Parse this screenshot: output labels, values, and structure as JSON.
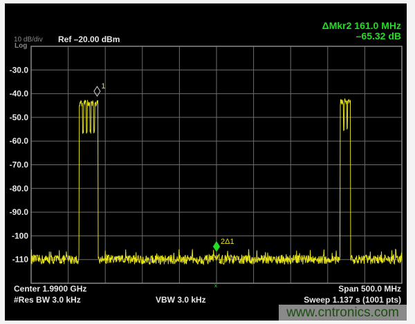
{
  "header": {
    "scale": "10 dB/div",
    "scale_type": "Log",
    "ref_level": "Ref –20.00 dBm",
    "marker_readout_line1": "ΔMkr2 161.0 MHz",
    "marker_readout_line2": "–65.32 dB"
  },
  "footer": {
    "center": "Center 1.9900 GHz",
    "span": "Span 500.0 MHz",
    "res_bw": "#Res BW 3.0 kHz",
    "vbw": "VBW 3.0 kHz",
    "sweep": "Sweep  1.137 s (1001 pts)"
  },
  "watermark": "www.cntronics.com",
  "colors": {
    "trace": "#e6e21a",
    "marker_delta": "#22dd22",
    "marker_ref": "#cfcfcf",
    "grid": "#6e6e6e",
    "background": "#000000",
    "readout": "#22dd22"
  },
  "chart_data": {
    "type": "line",
    "x_unit": "GHz",
    "xlim": [
      1.74,
      2.24
    ],
    "ylim": [
      -120,
      -20
    ],
    "y_ticks": [
      "-30.0",
      "-40.0",
      "-50.0",
      "-60.0",
      "-70.0",
      "-80.0",
      "-90.0",
      "-100",
      "-110"
    ],
    "y_tick_values": [
      -30,
      -40,
      -50,
      -60,
      -70,
      -80,
      -90,
      -100,
      -110
    ],
    "grid": true,
    "noise_floor_db": -110,
    "bands": [
      {
        "start_ghz": 1.805,
        "end_ghz": 1.83,
        "top_db": -44,
        "dip_db": -57,
        "dips": 4
      },
      {
        "start_ghz": 2.157,
        "end_ghz": 2.171,
        "top_db": -43.5,
        "dip_db": -56,
        "dips": 2
      }
    ],
    "markers": [
      {
        "label": "1",
        "freq_ghz": 1.829,
        "level_db": -39,
        "type": "reference"
      },
      {
        "label": "2Δ1",
        "freq_ghz": 1.99,
        "level_db": -104.5,
        "type": "delta"
      }
    ]
  }
}
